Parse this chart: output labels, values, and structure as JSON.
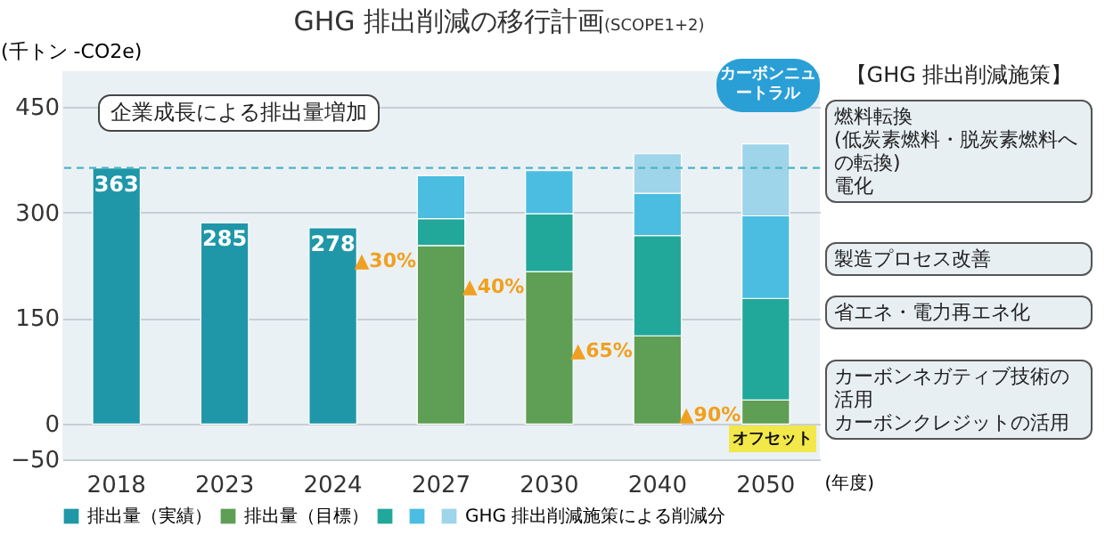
{
  "chart_data": {
    "type": "bar",
    "title": "GHG 排出削減の移行計画",
    "subtitle": "(SCOPE1+2)",
    "ylabel": "(千トン -CO2e)",
    "xlabel": "(年度)",
    "categories": [
      "2018",
      "2023",
      "2024",
      "2027",
      "2030",
      "2040",
      "2050"
    ],
    "stacked": true,
    "ylim": [
      -50,
      500
    ],
    "yticks": [
      -50,
      0,
      150,
      300,
      450
    ],
    "grid": "y",
    "legend": "bottom",
    "series": [
      {
        "name": "排出量（実績）",
        "color": "#1f97a8",
        "values": [
          363,
          285,
          278,
          null,
          null,
          null,
          null
        ],
        "value_labels": [
          "363",
          "285",
          "278",
          null,
          null,
          null,
          null
        ]
      },
      {
        "name": "排出量（目標）",
        "color": "#5f9e55",
        "values": [
          null,
          null,
          null,
          253,
          216,
          125,
          34
        ]
      },
      {
        "color": "#22a89a",
        "values": [
          null,
          null,
          null,
          38,
          82,
          142,
          144
        ]
      },
      {
        "color": "#4bbde0",
        "values": [
          null,
          null,
          null,
          61,
          61,
          60,
          117
        ]
      },
      {
        "name": "GHG 排出削減施策による削減分",
        "color": "#9ed5ea",
        "values": [
          null,
          null,
          null,
          null,
          null,
          56,
          102
        ]
      }
    ],
    "ref_lines": [
      {
        "axis": "y",
        "value": 363,
        "color": "#4fb3c4",
        "line_style": "dashed"
      }
    ],
    "annotations": [
      {
        "text": "▲30%",
        "x": "2027",
        "y": 253
      },
      {
        "text": "▲40%",
        "x": "2030",
        "y": 216
      },
      {
        "text": "▲65%",
        "x": "2040",
        "y": 125
      },
      {
        "text": "▲90%",
        "x": "2050",
        "y": 34
      },
      "企業成長による排出量増加",
      "カーボンニュートラル",
      "オフセット",
      "【GHG 排出削減施策】",
      "燃料転換",
      "(低炭素燃料・脱炭素燃料への転換)",
      "電化",
      "製造プロセス改善",
      "省エネ・電力再エネ化",
      "カーボンネガティブ技術の活用",
      "カーボンクレジットの活用"
    ]
  }
}
